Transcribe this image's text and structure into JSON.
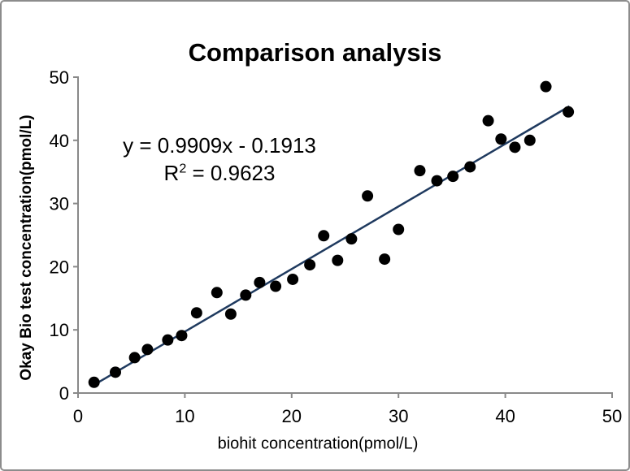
{
  "frame": {
    "background": "#ffffff",
    "border_color": "#8c8c8c"
  },
  "chart_data": {
    "type": "scatter",
    "title": "Comparison analysis",
    "xlabel": "biohit concentration(pmol/L)",
    "ylabel": "Okay Bio test concentration(pmol/L)",
    "xlim": [
      0,
      50
    ],
    "ylim": [
      0,
      50
    ],
    "x_ticks": [
      0,
      10,
      20,
      30,
      40,
      50
    ],
    "y_ticks": [
      0,
      10,
      20,
      30,
      40,
      50
    ],
    "grid": false,
    "legend": false,
    "annotation": {
      "line1": "y = 0.9909x - 0.1913",
      "r_base": "R",
      "r_sup": "2",
      "r_rest": " = 0.9623"
    },
    "trendline": {
      "slope": 0.9909,
      "intercept": -0.1913,
      "x_start": 1.5,
      "x_end": 46.0,
      "color": "#1f3a5f",
      "width": 2.5
    },
    "marker": {
      "color": "#000000",
      "radius": 7
    },
    "axis": {
      "color": "#898989",
      "tick_label_color": "#000000",
      "tick_label_size": 22,
      "tick_length": 6,
      "line_width": 2
    },
    "points": [
      {
        "x": 1.5,
        "y": 1.7
      },
      {
        "x": 3.5,
        "y": 3.3
      },
      {
        "x": 5.3,
        "y": 5.6
      },
      {
        "x": 6.5,
        "y": 6.9
      },
      {
        "x": 8.4,
        "y": 8.4
      },
      {
        "x": 9.7,
        "y": 9.1
      },
      {
        "x": 11.1,
        "y": 12.7
      },
      {
        "x": 13.0,
        "y": 15.9
      },
      {
        "x": 14.3,
        "y": 12.5
      },
      {
        "x": 15.7,
        "y": 15.5
      },
      {
        "x": 17.0,
        "y": 17.5
      },
      {
        "x": 18.5,
        "y": 16.9
      },
      {
        "x": 20.1,
        "y": 18.0
      },
      {
        "x": 21.7,
        "y": 20.3
      },
      {
        "x": 23.0,
        "y": 24.9
      },
      {
        "x": 24.3,
        "y": 21.0
      },
      {
        "x": 25.6,
        "y": 24.4
      },
      {
        "x": 27.1,
        "y": 31.2
      },
      {
        "x": 28.7,
        "y": 21.2
      },
      {
        "x": 30.0,
        "y": 25.9
      },
      {
        "x": 32.0,
        "y": 35.2
      },
      {
        "x": 33.6,
        "y": 33.6
      },
      {
        "x": 35.1,
        "y": 34.3
      },
      {
        "x": 36.7,
        "y": 35.8
      },
      {
        "x": 38.4,
        "y": 43.1
      },
      {
        "x": 39.6,
        "y": 40.2
      },
      {
        "x": 40.9,
        "y": 38.9
      },
      {
        "x": 42.3,
        "y": 40.0
      },
      {
        "x": 43.8,
        "y": 48.5
      },
      {
        "x": 45.9,
        "y": 44.5
      }
    ]
  }
}
